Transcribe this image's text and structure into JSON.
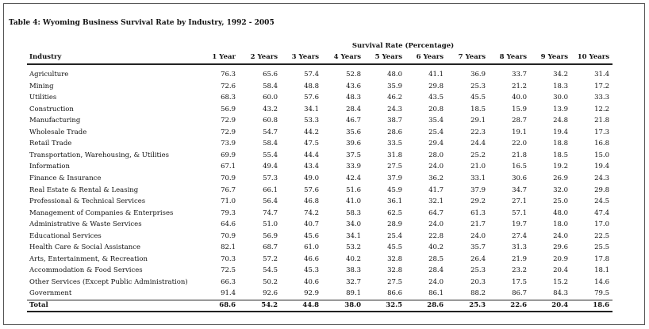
{
  "title": "Table 4: Wyoming Business Survival Rate by Industry, 1992 - 2005",
  "table": {
    "group_header": "Survival Rate (Percentage)",
    "header": [
      "Industry",
      "1 Year",
      "2 Years",
      "3 Years",
      "4 Years",
      "5 Years",
      "6 Years",
      "7 Years",
      "8 Years",
      "9 Years",
      "10 Years"
    ],
    "rows": [
      [
        "Agriculture",
        "76.3",
        "65.6",
        "57.4",
        "52.8",
        "48.0",
        "41.1",
        "36.9",
        "33.7",
        "34.2",
        "31.4"
      ],
      [
        "Mining",
        "72.6",
        "58.4",
        "48.8",
        "43.6",
        "35.9",
        "29.8",
        "25.3",
        "21.2",
        "18.3",
        "17.2"
      ],
      [
        "Utilities",
        "68.3",
        "60.0",
        "57.6",
        "48.3",
        "46.2",
        "43.5",
        "45.5",
        "40.0",
        "30.0",
        "33.3"
      ],
      [
        "Construction",
        "56.9",
        "43.2",
        "34.1",
        "28.4",
        "24.3",
        "20.8",
        "18.5",
        "15.9",
        "13.9",
        "12.2"
      ],
      [
        "Manufacturing",
        "72.9",
        "60.8",
        "53.3",
        "46.7",
        "38.7",
        "35.4",
        "29.1",
        "28.7",
        "24.8",
        "21.8"
      ],
      [
        "Wholesale Trade",
        "72.9",
        "54.7",
        "44.2",
        "35.6",
        "28.6",
        "25.4",
        "22.3",
        "19.1",
        "19.4",
        "17.3"
      ],
      [
        "Retail Trade",
        "73.9",
        "58.4",
        "47.5",
        "39.6",
        "33.5",
        "29.4",
        "24.4",
        "22.0",
        "18.8",
        "16.8"
      ],
      [
        "Transportation, Warehousing, & Utilities",
        "69.9",
        "55.4",
        "44.4",
        "37.5",
        "31.8",
        "28.0",
        "25.2",
        "21.8",
        "18.5",
        "15.0"
      ],
      [
        "Information",
        "67.1",
        "49.4",
        "43.4",
        "33.9",
        "27.5",
        "24.0",
        "21.0",
        "16.5",
        "19.2",
        "19.4"
      ],
      [
        "Finance & Insurance",
        "70.9",
        "57.3",
        "49.0",
        "42.4",
        "37.9",
        "36.2",
        "33.1",
        "30.6",
        "26.9",
        "24.3"
      ],
      [
        "Real Estate & Rental & Leasing",
        "76.7",
        "66.1",
        "57.6",
        "51.6",
        "45.9",
        "41.7",
        "37.9",
        "34.7",
        "32.0",
        "29.8"
      ],
      [
        "Professional & Technical Services",
        "71.0",
        "56.4",
        "46.8",
        "41.0",
        "36.1",
        "32.1",
        "29.2",
        "27.1",
        "25.0",
        "24.5"
      ],
      [
        "Management of Companies & Enterprises",
        "79.3",
        "74.7",
        "74.2",
        "58.3",
        "62.5",
        "64.7",
        "61.3",
        "57.1",
        "48.0",
        "47.4"
      ],
      [
        "Administrative & Waste Services",
        "64.6",
        "51.0",
        "40.7",
        "34.0",
        "28.9",
        "24.0",
        "21.7",
        "19.7",
        "18.0",
        "17.0"
      ],
      [
        "Educational Services",
        "70.9",
        "56.9",
        "45.6",
        "34.1",
        "25.4",
        "22.8",
        "24.0",
        "27.4",
        "24.0",
        "22.5"
      ],
      [
        "Health Care & Social Assistance",
        "82.1",
        "68.7",
        "61.0",
        "53.2",
        "45.5",
        "40.2",
        "35.7",
        "31.3",
        "29.6",
        "25.5"
      ],
      [
        "Arts, Entertainment, & Recreation",
        "70.3",
        "57.2",
        "46.6",
        "40.2",
        "32.8",
        "28.5",
        "26.4",
        "21.9",
        "20.9",
        "17.8"
      ],
      [
        "Accommodation & Food Services",
        "72.5",
        "54.5",
        "45.3",
        "38.3",
        "32.8",
        "28.4",
        "25.3",
        "23.2",
        "20.4",
        "18.1"
      ],
      [
        "Other Services (Except Public Administration)",
        "66.3",
        "50.2",
        "40.6",
        "32.7",
        "27.5",
        "24.0",
        "20.3",
        "17.5",
        "15.2",
        "14.6"
      ],
      [
        "Government",
        "91.4",
        "92.6",
        "92.9",
        "89.1",
        "86.6",
        "86.1",
        "88.2",
        "86.7",
        "84.3",
        "79.5"
      ]
    ],
    "total": [
      "Total",
      "68.6",
      "54.2",
      "44.8",
      "38.0",
      "32.5",
      "28.6",
      "25.3",
      "22.6",
      "20.4",
      "18.6"
    ]
  }
}
